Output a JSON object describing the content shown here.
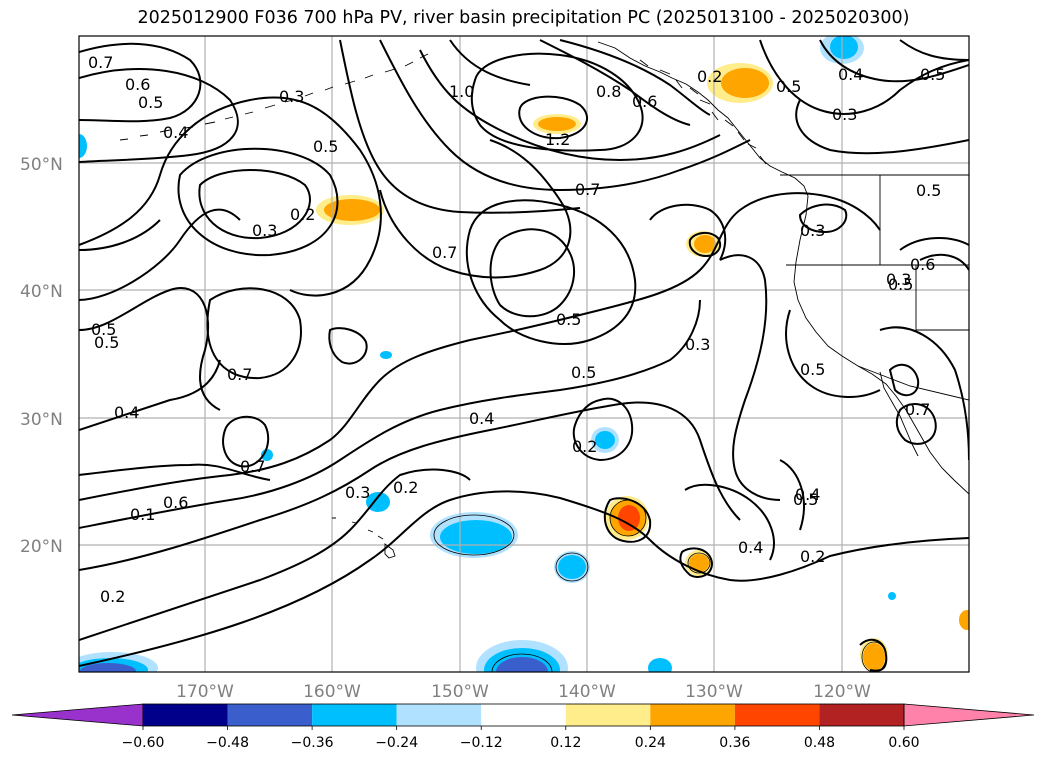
{
  "title": "2025012900 F036 700 hPa PV, river basin precipitation PC (2025013100 - 2025020300)",
  "lat_labels": [
    "50°N",
    "40°N",
    "30°N",
    "20°N"
  ],
  "lon_labels": [
    "170°W",
    "160°W",
    "150°W",
    "140°W",
    "130°W",
    "120°W"
  ],
  "contour_labels": [
    "0.7",
    "0.6",
    "0.5",
    "0.3",
    "0.4",
    "1.0",
    "0.8",
    "0.6",
    "0.2",
    "0.5",
    "1.2",
    "0.4",
    "0.5",
    "0.3",
    "0.5",
    "0.2",
    "0.3",
    "0.5",
    "0.7",
    "0.7",
    "0.5",
    "0.3",
    "0.5",
    "0.7",
    "0.3",
    "0.5",
    "0.3",
    "0.5",
    "0.4",
    "0.7",
    "0.4",
    "0.2",
    "0.7",
    "0.1",
    "0.6",
    "0.3",
    "0.2",
    "0.4",
    "0.2",
    "0.2",
    "0.5",
    "0.6",
    "0.5",
    "0.5",
    "0.4"
  ],
  "colorbar": {
    "ticks": [
      "−0.60",
      "−0.48",
      "−0.36",
      "−0.24",
      "−0.12",
      "0.12",
      "0.24",
      "0.36",
      "0.48",
      "0.60"
    ],
    "colors": [
      "#9932cc",
      "#00008b",
      "#3a5fcd",
      "#00bfff",
      "#b0e2ff",
      "#ffffff",
      "#ffec8b",
      "#ffa500",
      "#ff4500",
      "#b22222",
      "#ff82ab"
    ]
  }
}
